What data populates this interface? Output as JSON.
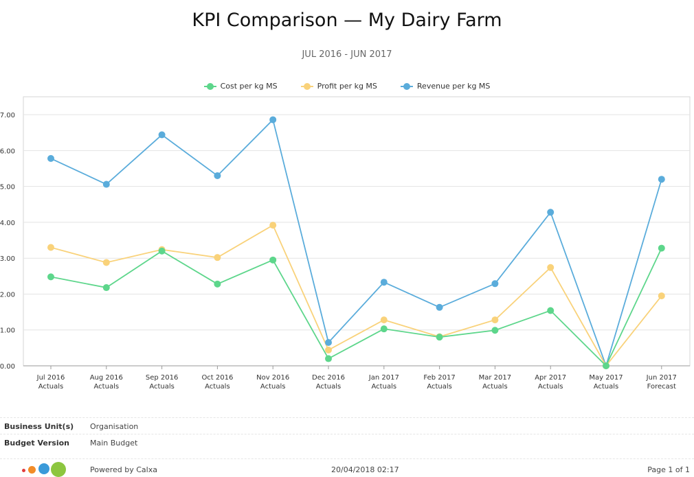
{
  "report": {
    "title": "KPI Comparison — My Dairy Farm",
    "subtitle": "JUL 2016 - JUN 2017"
  },
  "chart_data": {
    "type": "line",
    "categories": [
      [
        "Jul 2016",
        "Actuals"
      ],
      [
        "Aug 2016",
        "Actuals"
      ],
      [
        "Sep 2016",
        "Actuals"
      ],
      [
        "Oct 2016",
        "Actuals"
      ],
      [
        "Nov 2016",
        "Actuals"
      ],
      [
        "Dec 2016",
        "Actuals"
      ],
      [
        "Jan 2017",
        "Actuals"
      ],
      [
        "Feb 2017",
        "Actuals"
      ],
      [
        "Mar 2017",
        "Actuals"
      ],
      [
        "Apr 2017",
        "Actuals"
      ],
      [
        "May 2017",
        "Actuals"
      ],
      [
        "Jun 2017",
        "Forecast"
      ]
    ],
    "yticks": [
      "0.00",
      "1.00",
      "2.00",
      "3.00",
      "4.00",
      "5.00",
      "6.00",
      "7.00"
    ],
    "ylim": [
      0,
      7.5
    ],
    "grid": true,
    "legend_position": "top-center",
    "series": [
      {
        "name": "Cost per kg MS",
        "color": "#5dd68b",
        "values": [
          2.48,
          2.18,
          3.2,
          2.28,
          2.95,
          0.2,
          1.03,
          0.8,
          0.99,
          1.54,
          0.0,
          3.28
        ]
      },
      {
        "name": "Profit per kg MS",
        "color": "#f9d27a",
        "values": [
          3.3,
          2.88,
          3.24,
          3.02,
          3.92,
          0.44,
          1.28,
          0.81,
          1.28,
          2.74,
          0.0,
          1.95
        ]
      },
      {
        "name": "Revenue per kg MS",
        "color": "#5aacdb",
        "values": [
          5.78,
          5.06,
          6.44,
          5.3,
          6.86,
          0.65,
          2.33,
          1.63,
          2.29,
          4.28,
          0.0,
          5.2
        ]
      }
    ]
  },
  "footer": {
    "rows": [
      {
        "label": "Business Unit(s)",
        "value": "Organisation"
      },
      {
        "label": "Budget Version",
        "value": "Main Budget"
      }
    ],
    "powered_by": "Powered by Calxa",
    "timestamp": "20/04/2018 02:17",
    "page_info": "Page 1 of 1"
  }
}
